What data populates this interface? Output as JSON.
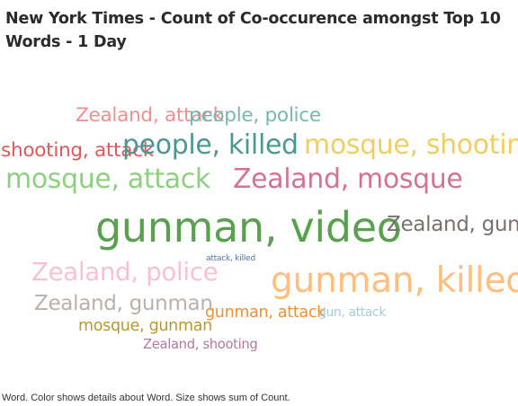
{
  "title": "New York Times - Count of Co-occurence amongst Top 10 Words - 1 Day",
  "caption": "Word.  Color shows details about Word.  Size shows sum of Count.",
  "chart_data": {
    "type": "word_cloud",
    "title": "New York Times - Count of Co-occurence amongst Top 10 Words - 1 Day",
    "size_encoding": "sum of Count",
    "color_encoding": "Word",
    "words": [
      {
        "word": "Zealand, attack",
        "relative_size": 0.47,
        "color": "#f28e8e"
      },
      {
        "word": "people, police",
        "relative_size": 0.47,
        "color": "#76b7b2"
      },
      {
        "word": "shooting, attack",
        "relative_size": 0.47,
        "color": "#e15759"
      },
      {
        "word": "people, killed",
        "relative_size": 0.65,
        "color": "#499894"
      },
      {
        "word": "mosque, shooting",
        "relative_size": 0.65,
        "color": "#f1ce63"
      },
      {
        "word": "mosque, attack",
        "relative_size": 0.65,
        "color": "#8cd17d"
      },
      {
        "word": "Zealand, mosque",
        "relative_size": 0.65,
        "color": "#d37295"
      },
      {
        "word": "gunman, video",
        "relative_size": 1.0,
        "color": "#59a14f"
      },
      {
        "word": "Zealand, gun",
        "relative_size": 0.5,
        "color": "#79706e"
      },
      {
        "word": "attack, killed",
        "relative_size": 0.2,
        "color": "#4e79a7"
      },
      {
        "word": "Zealand, police",
        "relative_size": 0.6,
        "color": "#fabfd2"
      },
      {
        "word": "gunman, killed",
        "relative_size": 0.85,
        "color": "#ffbe7d"
      },
      {
        "word": "Zealand, gunman",
        "relative_size": 0.5,
        "color": "#bab0ac"
      },
      {
        "word": "mosque, gunman",
        "relative_size": 0.38,
        "color": "#b6992d"
      },
      {
        "word": "gunman, attack",
        "relative_size": 0.38,
        "color": "#f28e2b"
      },
      {
        "word": "gun, attack",
        "relative_size": 0.3,
        "color": "#a0cbe8"
      },
      {
        "word": "Zealand, shooting",
        "relative_size": 0.32,
        "color": "#b07aa1"
      }
    ]
  }
}
